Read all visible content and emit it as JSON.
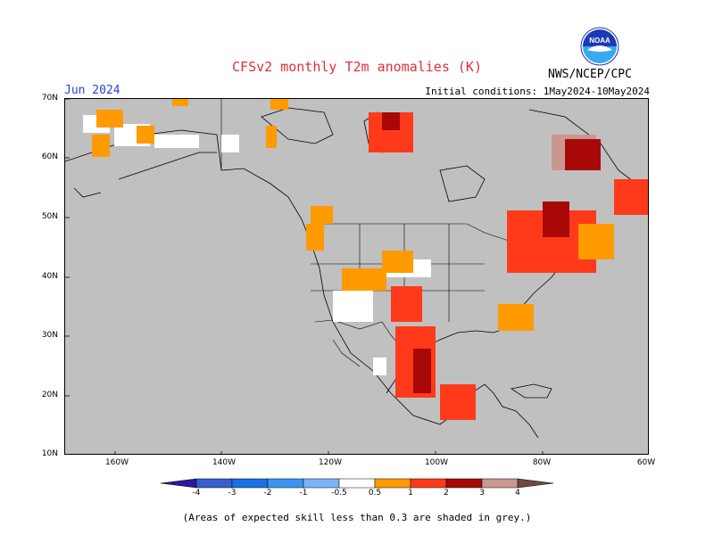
{
  "header": {
    "title": "CFSv2 monthly T2m anomalies (K)",
    "month": "Jun 2024",
    "initial_conditions": "Initial conditions: 1May2024-10May2024",
    "agency": "NWS/NCEP/CPC",
    "logo_text": "NOAA"
  },
  "map": {
    "background_color": "#c0c0c0",
    "lat_labels": [
      "70N",
      "60N",
      "50N",
      "40N",
      "30N",
      "20N",
      "10N"
    ],
    "lon_labels": [
      "160W",
      "140W",
      "120W",
      "100W",
      "80W",
      "60W"
    ]
  },
  "colorbar": {
    "labels": [
      "-4",
      "-3",
      "-2",
      "-1",
      "-0.5",
      "0.5",
      "1",
      "2",
      "3",
      "4"
    ],
    "colors": [
      "#2a1a9a",
      "#3a5ed0",
      "#1a72e0",
      "#3a94f0",
      "#78b4f8",
      "#ffffff",
      "#ff9a00",
      "#ff3a1a",
      "#a80808",
      "#c89890",
      "#6e4a40"
    ]
  },
  "footer": {
    "note": "(Areas of expected skill less than 0.3 are shaded in grey.)"
  }
}
